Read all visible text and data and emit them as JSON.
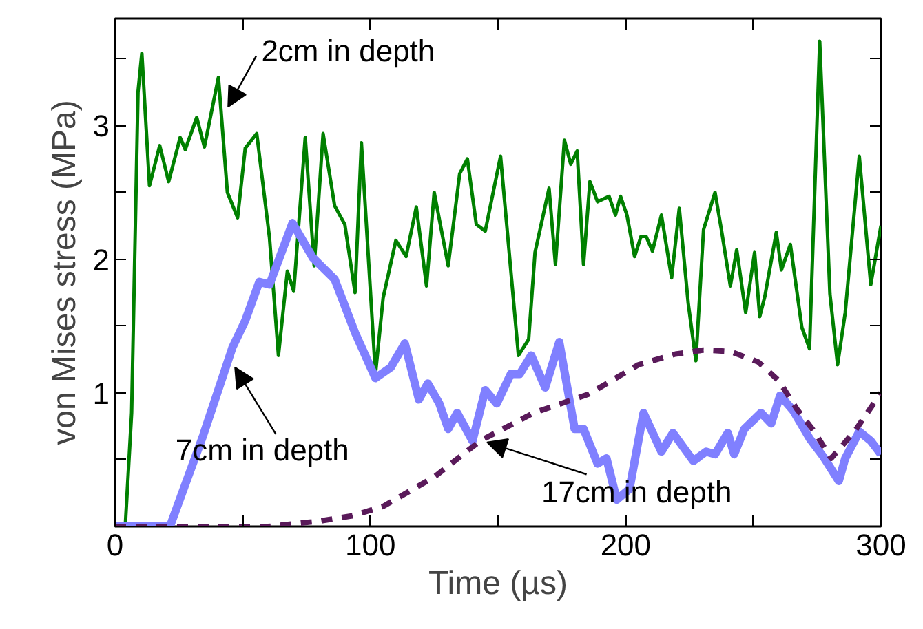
{
  "chart_data": {
    "type": "line",
    "xlabel": "Time (µs)",
    "ylabel": "von Mises stress (MPa)",
    "xlim": [
      0,
      300
    ],
    "ylim": [
      0,
      3.8
    ],
    "xticks": [
      0,
      {
        "value": 50,
        "label": null
      },
      100,
      {
        "value": 150,
        "label": null
      },
      200,
      {
        "value": 250,
        "label": null
      },
      300
    ],
    "yticks": [
      {
        "value": 0.5,
        "label": null
      },
      1,
      {
        "value": 1.5,
        "label": null
      },
      2,
      {
        "value": 2.5,
        "label": null
      },
      3,
      {
        "value": 3.5,
        "label": null
      }
    ],
    "grid": false,
    "marker": "none",
    "series": [
      {
        "color": "#008000",
        "line_style": "solid",
        "x": [
          0,
          4,
          6.5,
          9,
          10.5,
          13.5,
          17.5,
          21,
          25.5,
          27.5,
          32,
          35,
          40.5,
          44,
          48,
          51,
          55.5,
          60.5,
          64,
          67.5,
          70,
          74.5,
          78,
          81.5,
          86,
          90,
          94,
          96.5,
          102,
          105,
          110,
          114,
          118,
          122,
          125,
          130.5,
          135,
          138,
          141.5,
          145,
          151,
          158,
          162,
          164.5,
          170,
          172.5,
          176,
          178.5,
          181,
          183.5,
          186,
          189,
          193.5,
          196,
          198,
          200.5,
          203.5,
          206,
          208,
          210.5,
          214,
          218,
          221,
          224.5,
          227.5,
          230.5,
          235,
          237.5,
          241,
          243.5,
          247,
          250.5,
          252.5,
          254.5,
          259,
          261,
          264.5,
          269,
          272,
          276,
          280,
          283,
          286,
          291.5,
          296,
          300
        ],
        "values": [
          0,
          0,
          0.85,
          3.25,
          3.54,
          2.55,
          2.85,
          2.58,
          2.91,
          2.82,
          3.06,
          2.84,
          3.36,
          2.5,
          2.31,
          2.83,
          2.94,
          2.16,
          1.28,
          1.91,
          1.76,
          2.91,
          1.95,
          2.94,
          2.4,
          2.26,
          1.75,
          2.87,
          1.14,
          1.71,
          2.14,
          2.02,
          2.39,
          1.8,
          2.5,
          1.95,
          2.64,
          2.75,
          2.26,
          2.21,
          2.77,
          1.28,
          1.4,
          2.05,
          2.53,
          1.96,
          2.89,
          2.71,
          2.81,
          1.96,
          2.58,
          2.43,
          2.47,
          2.33,
          2.47,
          2.33,
          2.02,
          2.17,
          2.17,
          2.06,
          2.33,
          1.86,
          2.38,
          1.67,
          1.24,
          2.22,
          2.5,
          2.22,
          1.8,
          2.07,
          1.6,
          2.05,
          1.57,
          1.72,
          2.2,
          1.92,
          2.11,
          1.49,
          1.33,
          3.63,
          1.74,
          1.21,
          1.6,
          2.77,
          1.81,
          2.25
        ]
      },
      {
        "color": "#8080ff",
        "line_style": "solid",
        "x": [
          0,
          21.5,
          34.5,
          46,
          51,
          56.5,
          60.5,
          69.5,
          77.5,
          86,
          94,
          102,
          108,
          113.5,
          119,
          122.5,
          127,
          130.5,
          134,
          140,
          145,
          149.5,
          155,
          158.5,
          163,
          168.5,
          174,
          180,
          183.5,
          189,
          192.5,
          196.5,
          201.5,
          207,
          214,
          218.5,
          226.5,
          231.5,
          235,
          240,
          242.5,
          246.5,
          253,
          257,
          260.5,
          265.5,
          272,
          277.5,
          283.5,
          286,
          291.5,
          296,
          300
        ],
        "values": [
          0,
          0,
          0.68,
          1.34,
          1.54,
          1.83,
          1.81,
          2.27,
          2.01,
          1.85,
          1.45,
          1.11,
          1.19,
          1.37,
          0.95,
          1.07,
          0.92,
          0.73,
          0.85,
          0.64,
          1.02,
          0.92,
          1.14,
          1.14,
          1.28,
          1.04,
          1.38,
          0.73,
          0.73,
          0.47,
          0.51,
          0.2,
          0.28,
          0.85,
          0.56,
          0.7,
          0.49,
          0.56,
          0.54,
          0.7,
          0.54,
          0.73,
          0.85,
          0.77,
          0.98,
          0.87,
          0.66,
          0.52,
          0.34,
          0.51,
          0.71,
          0.64,
          0.54
        ]
      },
      {
        "color": "#5a1a5a",
        "line_style": "dashed",
        "x": [
          0,
          60,
          70,
          80,
          93,
          105,
          125,
          143,
          164,
          185.5,
          205,
          219.5,
          230.5,
          241,
          252,
          260,
          267,
          273.5,
          280.5,
          290,
          300
        ],
        "values": [
          0,
          0,
          0.02,
          0.04,
          0.08,
          0.15,
          0.37,
          0.64,
          0.85,
          0.99,
          1.21,
          1.29,
          1.32,
          1.31,
          1.23,
          1.09,
          0.88,
          0.72,
          0.51,
          0.72,
          1.0
        ]
      }
    ],
    "annotations": [
      {
        "text": "2cm in depth",
        "x": 44.3,
        "y": 3.14
      },
      {
        "text": "7cm in depth",
        "x": 47,
        "y": 1.19
      },
      {
        "text": "17cm in depth",
        "x": 145.7,
        "y": 0.63
      }
    ]
  }
}
